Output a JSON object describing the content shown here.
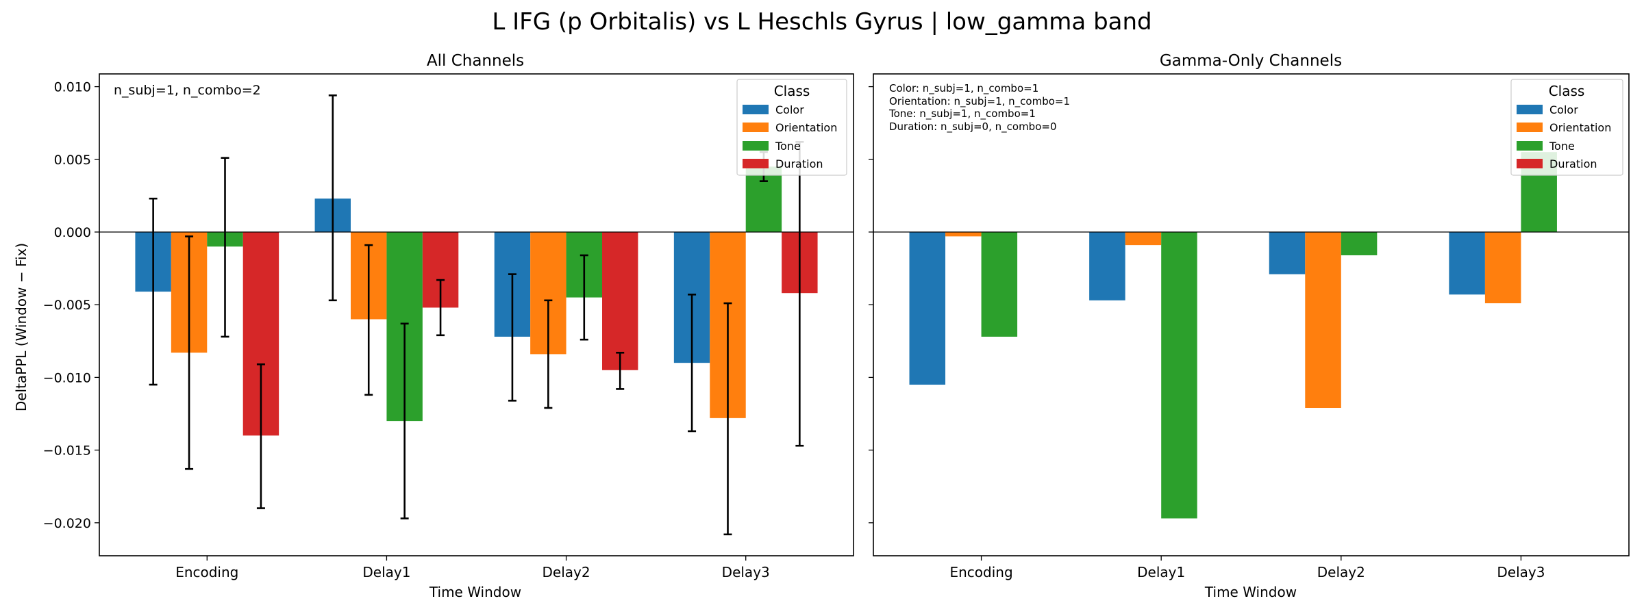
{
  "suptitle": "L IFG (p Orbitalis) vs L Heschls Gyrus  |  low_gamma band",
  "colors": {
    "Color": "#1f77b4",
    "Orientation": "#ff7f0e",
    "Tone": "#2ca02c",
    "Duration": "#d62728"
  },
  "chart_data": [
    {
      "type": "bar",
      "title": "All Channels",
      "xlabel": "Time Window",
      "ylabel": "DeltaPPL (Window − Fix)",
      "ylim": [
        -0.0225,
        0.0108
      ],
      "yticks": [
        0.01,
        0.005,
        0.0,
        -0.005,
        -0.01,
        -0.015,
        -0.02
      ],
      "ytick_labels": [
        "0.010",
        "0.005",
        "0.000",
        "−0.005",
        "−0.010",
        "−0.015",
        "−0.020"
      ],
      "categories": [
        "Encoding",
        "Delay1",
        "Delay2",
        "Delay3"
      ],
      "legend_title": "Class",
      "legend_position": "top-right",
      "annotation": [
        "n_subj=1, n_combo=2"
      ],
      "series": [
        {
          "name": "Color",
          "values": [
            -0.0041,
            0.0023,
            -0.0072,
            -0.009
          ],
          "err_low": [
            -0.0105,
            -0.0047,
            -0.0116,
            -0.0137
          ],
          "err_high": [
            0.0023,
            0.0094,
            -0.0029,
            -0.0043
          ]
        },
        {
          "name": "Orientation",
          "values": [
            -0.0083,
            -0.006,
            -0.0084,
            -0.0128
          ],
          "err_low": [
            -0.0163,
            -0.0112,
            -0.0121,
            -0.0208
          ],
          "err_high": [
            -0.0003,
            -0.0009,
            -0.0047,
            -0.0049
          ]
        },
        {
          "name": "Tone",
          "values": [
            -0.001,
            -0.013,
            -0.0045,
            0.0045
          ],
          "err_low": [
            -0.0072,
            -0.0197,
            -0.0074,
            0.0035
          ],
          "err_high": [
            0.0051,
            -0.0063,
            -0.0016,
            0.0055
          ]
        },
        {
          "name": "Duration",
          "values": [
            -0.014,
            -0.0052,
            -0.0095,
            -0.0042
          ],
          "err_low": [
            -0.019,
            -0.0071,
            -0.0108,
            -0.0147
          ],
          "err_high": [
            -0.0091,
            -0.0033,
            -0.0083,
            0.0062
          ]
        }
      ]
    },
    {
      "type": "bar",
      "title": "Gamma-Only Channels",
      "xlabel": "Time Window",
      "ylabel": "",
      "ylim": [
        -0.0225,
        0.0108
      ],
      "categories": [
        "Encoding",
        "Delay1",
        "Delay2",
        "Delay3"
      ],
      "legend_title": "Class",
      "legend_position": "top-right",
      "annotation": [
        "Color: n_subj=1, n_combo=1",
        "Orientation: n_subj=1, n_combo=1",
        "Tone: n_subj=1, n_combo=1",
        "Duration: n_subj=0, n_combo=0"
      ],
      "series": [
        {
          "name": "Color",
          "values": [
            -0.0105,
            -0.0047,
            -0.0029,
            -0.0043
          ]
        },
        {
          "name": "Orientation",
          "values": [
            -0.0003,
            -0.0009,
            -0.0121,
            -0.0049
          ]
        },
        {
          "name": "Tone",
          "values": [
            -0.0072,
            -0.0197,
            -0.0016,
            0.0055
          ]
        },
        {
          "name": "Duration",
          "values": [
            null,
            null,
            null,
            null
          ]
        }
      ]
    }
  ]
}
